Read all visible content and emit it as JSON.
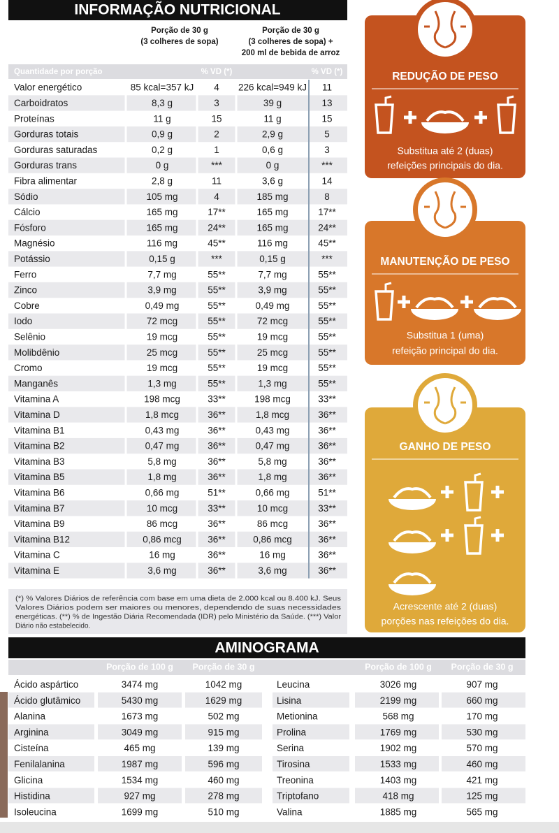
{
  "nutrition": {
    "title": "INFORMAÇÃO NUTRICIONAL",
    "header_1": [
      "Porção de 30 g",
      "(3 colheres de sopa)"
    ],
    "header_2": [
      "Porção de 30 g",
      "(3 colheres de sopa) +",
      "200 ml de bebida de arroz"
    ],
    "subheader": [
      "Quantidade por porção",
      "% VD (*)",
      "% VD (*)"
    ],
    "rows": [
      [
        "Valor energético",
        "85 kcal=357 kJ",
        "4",
        "226 kcal=949 kJ",
        "11"
      ],
      [
        "Carboidratos",
        "8,3 g",
        "3",
        "39 g",
        "13"
      ],
      [
        "Proteínas",
        "11 g",
        "15",
        "11 g",
        "15"
      ],
      [
        "Gorduras totais",
        "0,9 g",
        "2",
        "2,9 g",
        "5"
      ],
      [
        "Gorduras saturadas",
        "0,2 g",
        "1",
        "0,6 g",
        "3"
      ],
      [
        "Gorduras trans",
        "0 g",
        "***",
        "0 g",
        "***"
      ],
      [
        "Fibra alimentar",
        "2,8 g",
        "11",
        "3,6 g",
        "14"
      ],
      [
        "Sódio",
        "105 mg",
        "4",
        "185 mg",
        "8"
      ],
      [
        "Cálcio",
        "165 mg",
        "17**",
        "165 mg",
        "17**"
      ],
      [
        "Fósforo",
        "165 mg",
        "24**",
        "165 mg",
        "24**"
      ],
      [
        "Magnésio",
        "116 mg",
        "45**",
        "116 mg",
        "45**"
      ],
      [
        "Potássio",
        "0,15 g",
        "***",
        "0,15 g",
        "***"
      ],
      [
        "Ferro",
        "7,7 mg",
        "55**",
        "7,7 mg",
        "55**"
      ],
      [
        "Zinco",
        "3,9 mg",
        "55**",
        "3,9 mg",
        "55**"
      ],
      [
        "Cobre",
        "0,49 mg",
        "55**",
        "0,49 mg",
        "55**"
      ],
      [
        "Iodo",
        "72 mcg",
        "55**",
        "72 mcg",
        "55**"
      ],
      [
        "Selênio",
        "19 mcg",
        "55**",
        "19 mcg",
        "55**"
      ],
      [
        "Molibdênio",
        "25 mcg",
        "55**",
        "25 mcg",
        "55**"
      ],
      [
        "Cromo",
        "19 mcg",
        "55**",
        "19 mcg",
        "55**"
      ],
      [
        "Manganês",
        "1,3 mg",
        "55**",
        "1,3 mg",
        "55**"
      ],
      [
        "Vitamina A",
        "198 mcg",
        "33**",
        "198 mcg",
        "33**"
      ],
      [
        "Vitamina D",
        "1,8 mcg",
        "36**",
        "1,8 mcg",
        "36**"
      ],
      [
        "Vitamina B1",
        "0,43 mg",
        "36**",
        "0,43 mg",
        "36**"
      ],
      [
        "Vitamina B2",
        "0,47 mg",
        "36**",
        "0,47 mg",
        "36**"
      ],
      [
        "Vitamina B3",
        "5,8 mg",
        "36**",
        "5,8 mg",
        "36**"
      ],
      [
        "Vitamina B5",
        "1,8 mg",
        "36**",
        "1,8 mg",
        "36**"
      ],
      [
        "Vitamina B6",
        "0,66 mg",
        "51**",
        "0,66 mg",
        "51**"
      ],
      [
        "Vitamina B7",
        "10 mcg",
        "33**",
        "10 mcg",
        "33**"
      ],
      [
        "Vitamina B9",
        "86 mcg",
        "36**",
        "86 mcg",
        "36**"
      ],
      [
        "Vitamina B12",
        "0,86 mcg",
        "36**",
        "0,86 mcg",
        "36**"
      ],
      [
        "Vitamina C",
        "16 mg",
        "36**",
        "16 mg",
        "36**"
      ],
      [
        "Vitamina E",
        "3,6 mg",
        "36**",
        "3,6 mg",
        "36**"
      ]
    ],
    "footnote": [
      "(*) % Valores Diários de referência com base em uma dieta de 2.000 kcal ou 8.400 kJ. Seus",
      "Valores Diários podem ser maiores ou menores, dependendo de suas necessidades",
      "energéticas. (**) % de Ingestão Diária Recomendada (IDR) pelo Ministério da Saúde. (***) Valor",
      "Diário não estabelecido."
    ]
  },
  "aminogram": {
    "title": "AMINOGRAMA",
    "headers": [
      "Porção de 100 g",
      "Porção de 30 g",
      "Porção de 100 g",
      "Porção de 30 g"
    ],
    "rows": [
      [
        "Ácido aspártico",
        "3474 mg",
        "1042 mg",
        "Leucina",
        "3026 mg",
        "907 mg"
      ],
      [
        "Ácido glutâmico",
        "5430 mg",
        "1629 mg",
        "Lisina",
        "2199 mg",
        "660 mg"
      ],
      [
        "Alanina",
        "1673 mg",
        "502 mg",
        "Metionina",
        "568 mg",
        "170 mg"
      ],
      [
        "Arginina",
        "3049 mg",
        "915 mg",
        "Prolina",
        "1769 mg",
        "530 mg"
      ],
      [
        "Cisteína",
        "465 mg",
        "139 mg",
        "Serina",
        "1902 mg",
        "570 mg"
      ],
      [
        "Fenilalanina",
        "1987 mg",
        "596 mg",
        "Tirosina",
        "1533 mg",
        "460 mg"
      ],
      [
        "Glicina",
        "1534 mg",
        "460 mg",
        "Treonina",
        "1403 mg",
        "421 mg"
      ],
      [
        "Histidina",
        "927 mg",
        "278 mg",
        "Triptofano",
        "418 mg",
        "125 mg"
      ],
      [
        "Isoleucina",
        "1699 mg",
        "510 mg",
        "Valina",
        "1885 mg",
        "565 mg"
      ]
    ]
  },
  "cards": [
    {
      "title": "REDUÇÃO DE PESO",
      "text": [
        "Substitua até 2 (duas)",
        "refeições principais do dia."
      ]
    },
    {
      "title": "MANUTENÇÃO DE PESO",
      "text": [
        "Substitua 1 (uma)",
        "refeição principal do dia."
      ]
    },
    {
      "title": "GANHO DE PESO",
      "text": [
        "Acrescente até 2 (duas)",
        "porções nas refeições do dia."
      ]
    }
  ]
}
